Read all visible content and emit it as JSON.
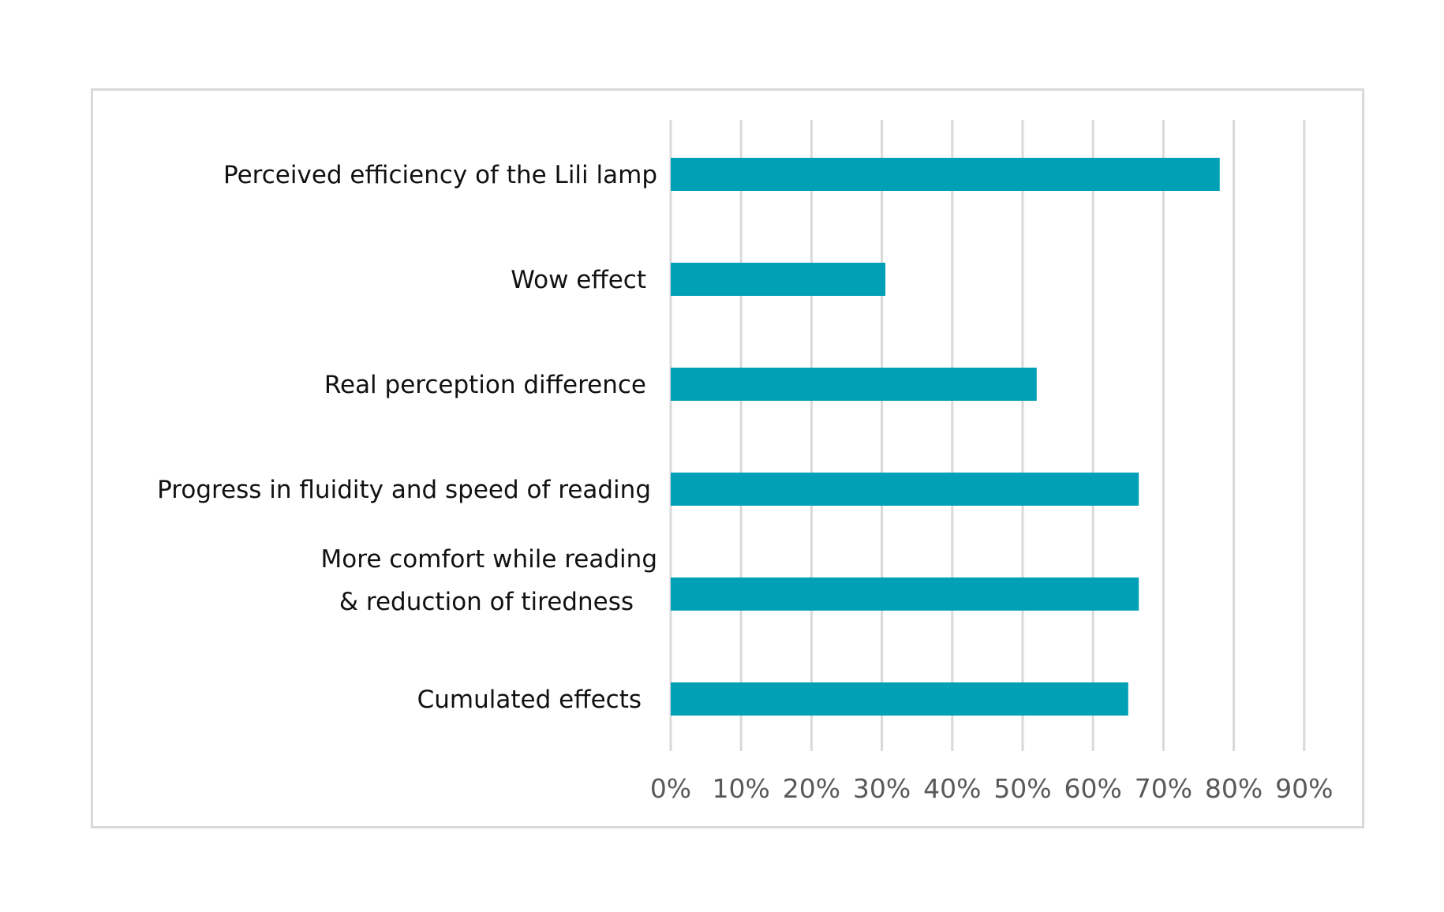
{
  "chart_data": {
    "type": "bar",
    "orientation": "horizontal",
    "categories": [
      [
        "Perceived efficiency of the Lili lamp"
      ],
      [
        "Wow effect"
      ],
      [
        "Real perception difference"
      ],
      [
        "Progress in fluidity and speed of reading"
      ],
      [
        "More comfort while reading",
        "& reduction of tiredness"
      ],
      [
        "Cumulated effects"
      ]
    ],
    "values": [
      78,
      30.5,
      52,
      66.5,
      66.5,
      65
    ],
    "x_ticks": [
      "0%",
      "10%",
      "20%",
      "30%",
      "40%",
      "50%",
      "60%",
      "70%",
      "80%",
      "90%"
    ],
    "xlim": [
      0,
      90
    ],
    "value_unit": "%",
    "grid": "vertical",
    "legend": "none",
    "colors": {
      "bar": "#00A0B6",
      "grid": "#d9d9d9",
      "tick_text": "#595959",
      "label_text": "#111111",
      "frame": "#d9d9d9"
    }
  }
}
